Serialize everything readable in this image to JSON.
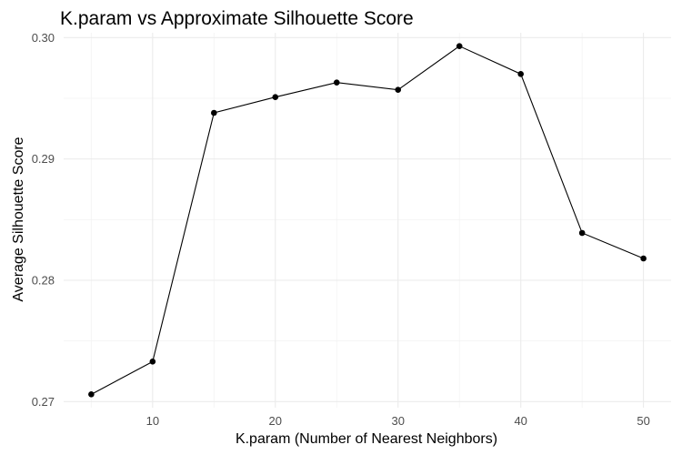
{
  "chart_data": {
    "type": "line",
    "title": "K.param vs Approximate Silhouette Score",
    "xlabel": "K.param (Number of Nearest Neighbors)",
    "ylabel": "Average Silhouette Score",
    "x": [
      5,
      10,
      15,
      20,
      25,
      30,
      35,
      40,
      45,
      50
    ],
    "y": [
      0.2706,
      0.2733,
      0.2938,
      0.2951,
      0.2963,
      0.2957,
      0.2993,
      0.297,
      0.2839,
      0.2818
    ],
    "xticks": [
      10,
      20,
      30,
      40,
      50
    ],
    "yticks": [
      0.27,
      0.28,
      0.29,
      0.3
    ],
    "xtick_labels": [
      "10",
      "20",
      "30",
      "40",
      "50"
    ],
    "ytick_labels": [
      "0.27",
      "0.28",
      "0.29",
      "0.30"
    ],
    "xlim": [
      2.75,
      52.25
    ],
    "ylim": [
      0.2695,
      0.3004
    ],
    "grid": true,
    "line_color": "#000000",
    "point_color": "#000000",
    "grid_color": "#ebebeb"
  }
}
